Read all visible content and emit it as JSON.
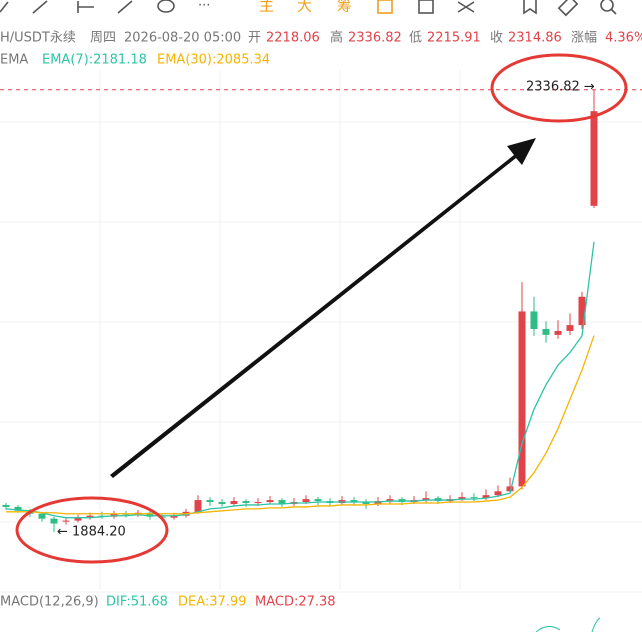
{
  "toolbar": {
    "main": "主",
    "big": "大",
    "chips": "筹"
  },
  "header": {
    "symbol": "H/USDT永续",
    "weekday": "周四",
    "time": "2026-08-20 05:00",
    "open_label": "开",
    "open": "2218.06",
    "high_label": "高",
    "high": "2336.82",
    "low_label": "低",
    "low": "2215.91",
    "close_label": "收",
    "close": "2314.86",
    "change_label": "涨幅",
    "change": "4.36%"
  },
  "indicators": {
    "name": "EMA",
    "ema7": "EMA(7):2181.18",
    "ema30": "EMA(30):2085.34"
  },
  "annotations": {
    "max_label": "2336.82 →",
    "min_label": "← 1884.20"
  },
  "macd": {
    "name": "MACD(12,26,9)",
    "dif": "DIF:51.68",
    "dea": "DEA:37.99",
    "macd": "MACD:27.38"
  },
  "chart_data": {
    "type": "candlestick",
    "ylim": [
      1825,
      2357
    ],
    "max_line": 2336.82,
    "up_color": "#e0434a",
    "down_color": "#2ebd85",
    "ema7_color": "#2ec4a6",
    "ema30_color": "#f5b400",
    "open": [
      1912,
      1910,
      1906,
      1903,
      1898,
      1895,
      1896,
      1899,
      1901,
      1900,
      1903,
      1902,
      1904,
      1900,
      1899,
      1901,
      1905,
      1917,
      1915,
      1913,
      1916,
      1914,
      1915,
      1917,
      1913,
      1915,
      1918,
      1916,
      1914,
      1917,
      1915,
      1913,
      1916,
      1918,
      1915,
      1917,
      1919,
      1916,
      1918,
      1920,
      1919,
      1922,
      1926,
      1931,
      2110,
      2092,
      2086,
      2090,
      2096,
      2218.06
    ],
    "close": [
      1910,
      1906,
      1903,
      1898,
      1893,
      1896,
      1899,
      1901,
      1900,
      1903,
      1902,
      1904,
      1900,
      1899,
      1901,
      1905,
      1917,
      1915,
      1913,
      1916,
      1914,
      1915,
      1917,
      1913,
      1915,
      1918,
      1916,
      1914,
      1917,
      1915,
      1913,
      1916,
      1918,
      1915,
      1917,
      1919,
      1916,
      1918,
      1920,
      1919,
      1922,
      1926,
      1931,
      2110,
      2092,
      2086,
      2090,
      2096,
      2125,
      2314.86
    ],
    "high": [
      1914,
      1912,
      1908,
      1905,
      1900,
      1899,
      1902,
      1904,
      1905,
      1906,
      1906,
      1907,
      1906,
      1903,
      1904,
      1908,
      1922,
      1920,
      1918,
      1920,
      1918,
      1919,
      1921,
      1919,
      1919,
      1922,
      1920,
      1919,
      1921,
      1920,
      1918,
      1920,
      1922,
      1920,
      1921,
      1926,
      1921,
      1922,
      1925,
      1924,
      1928,
      1932,
      1940,
      2140,
      2125,
      2100,
      2101,
      2108,
      2130,
      2336.82
    ],
    "low": [
      1907,
      1904,
      1900,
      1895,
      1884.2,
      1892,
      1894,
      1897,
      1898,
      1898,
      1899,
      1900,
      1897,
      1896,
      1897,
      1899,
      1903,
      1911,
      1910,
      1911,
      1910,
      1911,
      1913,
      1910,
      1911,
      1913,
      1912,
      1911,
      1912,
      1912,
      1908,
      1911,
      1913,
      1912,
      1913,
      1914,
      1913,
      1914,
      1916,
      1916,
      1917,
      1920,
      1924,
      1928,
      2085,
      2078,
      2082,
      2086,
      2092,
      2215.91
    ],
    "ema7": [
      1908,
      1907,
      1906,
      1904,
      1901,
      1899,
      1899,
      1899,
      1900,
      1901,
      1901,
      1902,
      1901,
      1901,
      1901,
      1902,
      1905,
      1908,
      1909,
      1911,
      1912,
      1912,
      1913,
      1913,
      1914,
      1914,
      1915,
      1915,
      1915,
      1915,
      1915,
      1915,
      1916,
      1916,
      1916,
      1917,
      1917,
      1917,
      1918,
      1918,
      1919,
      1921,
      1924,
      1975,
      2010,
      2035,
      2055,
      2068,
      2085,
      2181.18
    ],
    "ema30": [
      1905,
      1905,
      1905,
      1904,
      1904,
      1903,
      1903,
      1903,
      1903,
      1903,
      1903,
      1903,
      1903,
      1903,
      1903,
      1903,
      1904,
      1905,
      1906,
      1907,
      1908,
      1908,
      1909,
      1909,
      1910,
      1910,
      1911,
      1911,
      1912,
      1912,
      1912,
      1913,
      1913,
      1913,
      1914,
      1914,
      1914,
      1915,
      1915,
      1915,
      1916,
      1917,
      1920,
      1930,
      1945,
      1965,
      1990,
      2020,
      2050,
      2085.34
    ]
  }
}
